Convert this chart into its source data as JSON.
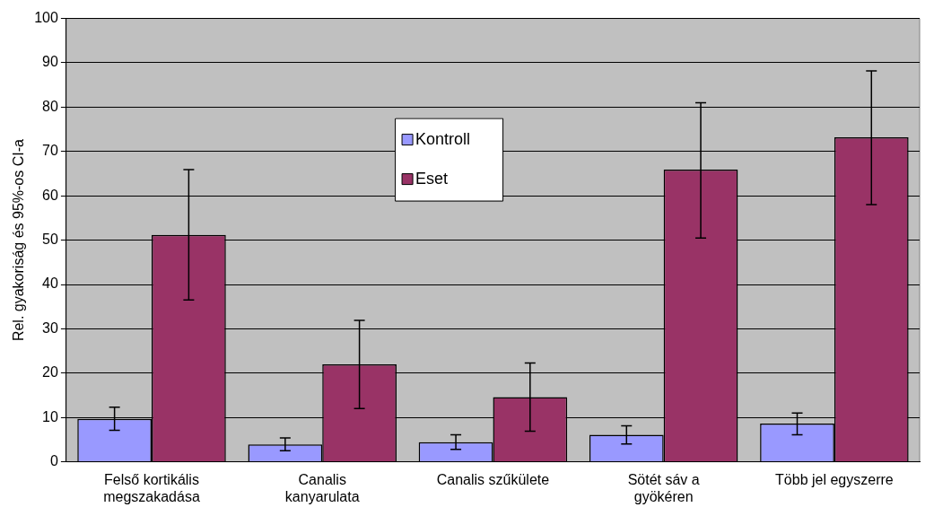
{
  "chart_data": {
    "type": "bar",
    "ylabel": "Rel. gyakoriság és 95%-os CI-a",
    "categories": [
      "Felső kortikális megszakadása",
      "Canalis kanyarulata",
      "Canalis szűkülete",
      "Sötét sáv a gyökéren",
      "Több jel egyszerre"
    ],
    "series": [
      {
        "name": "Kontroll",
        "color": "#9999ff",
        "values": [
          9.7,
          3.9,
          4.4,
          6.1,
          8.6
        ],
        "errors": [
          [
            7.1,
            12.3
          ],
          [
            2.5,
            5.4
          ],
          [
            2.8,
            6.1
          ],
          [
            4.0,
            8.1
          ],
          [
            6.1,
            11.0
          ]
        ]
      },
      {
        "name": "Eset",
        "color": "#993366",
        "values": [
          51.2,
          22.0,
          14.6,
          65.9,
          73.2
        ],
        "errors": [
          [
            36.5,
            65.9
          ],
          [
            12.0,
            31.9
          ],
          [
            6.9,
            22.3
          ],
          [
            50.5,
            81.0
          ],
          [
            58.0,
            88.2
          ]
        ]
      }
    ],
    "ylim": [
      0,
      100
    ],
    "yticks": [
      0,
      10,
      20,
      30,
      40,
      50,
      60,
      70,
      80,
      90,
      100
    ],
    "grid": "y",
    "legend": "top"
  }
}
